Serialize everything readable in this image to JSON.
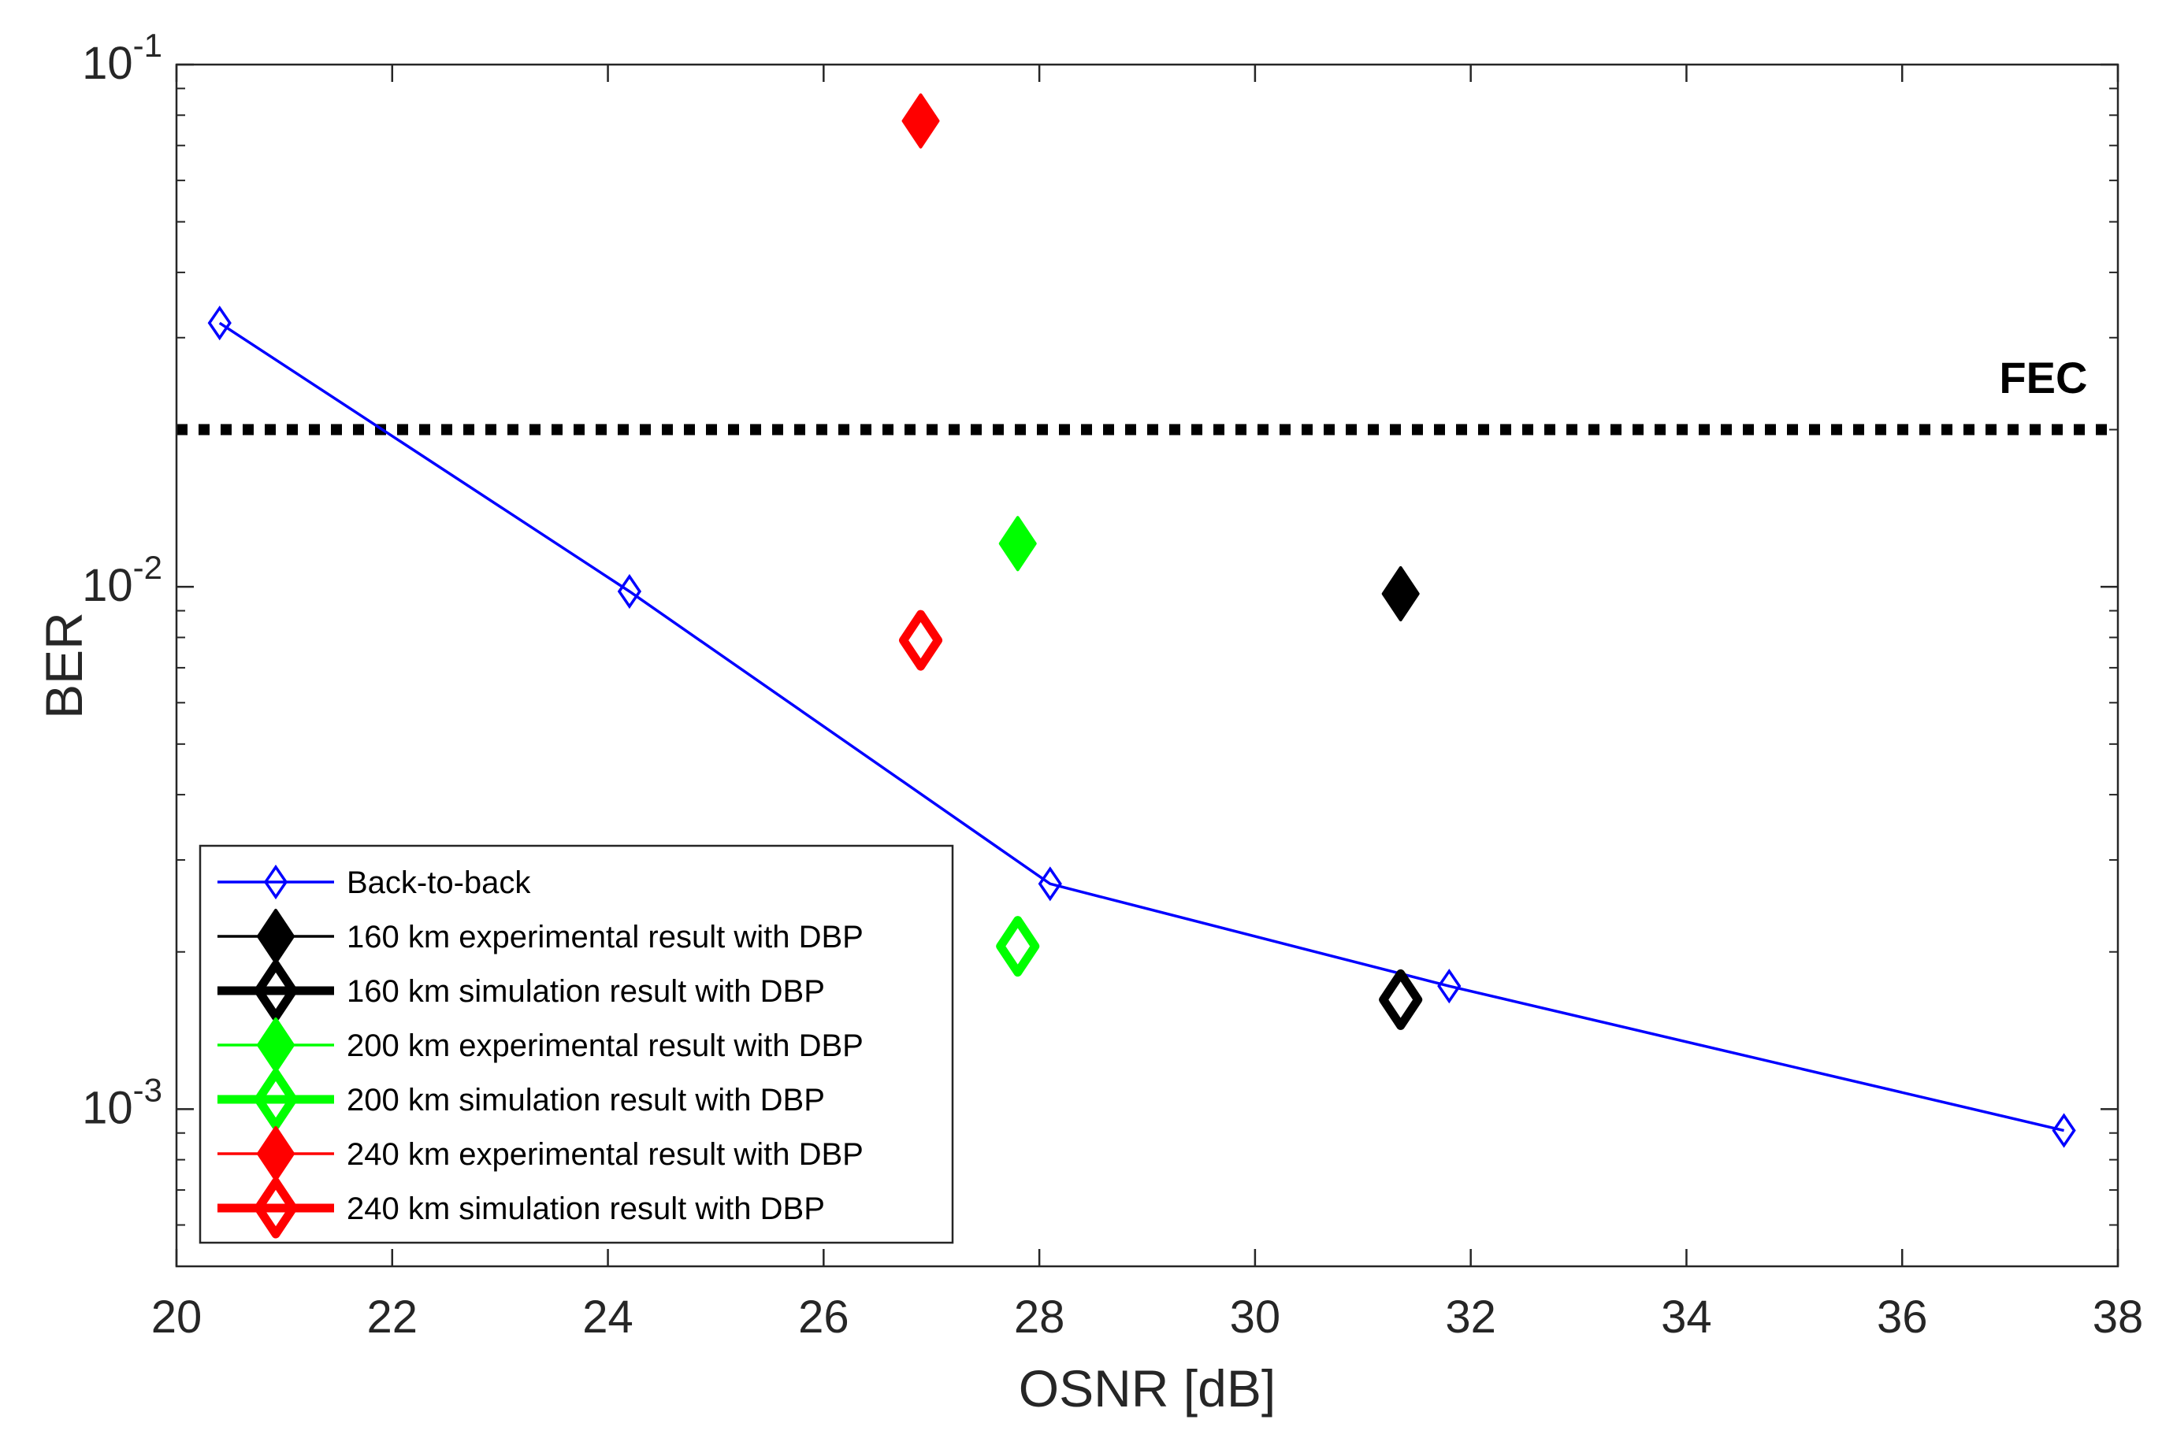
{
  "chart_data": {
    "type": "scatter",
    "title": "",
    "xlabel": "OSNR [dB]",
    "ylabel": "BER",
    "xlim": [
      20,
      38
    ],
    "ylim": [
      0.0005,
      0.1
    ],
    "yscale": "log",
    "x_ticks": [
      20,
      22,
      24,
      26,
      28,
      30,
      32,
      34,
      36,
      38
    ],
    "x_tick_labels": [
      "20",
      "22",
      "24",
      "26",
      "28",
      "30",
      "32",
      "34",
      "36",
      "38"
    ],
    "y_ticks": [
      0.001,
      0.01,
      0.1
    ],
    "y_tick_labels": [
      {
        "base": "10",
        "exp": "-3"
      },
      {
        "base": "10",
        "exp": "-2"
      },
      {
        "base": "10",
        "exp": "-1"
      }
    ],
    "grid": false,
    "legend_position": "bottom-left",
    "annotations": [
      {
        "text": "FEC",
        "x": 36.9,
        "y": 0.0235
      }
    ],
    "threshold_line": {
      "name": "FEC",
      "y": 0.02,
      "style": "dotted",
      "color": "#000000"
    },
    "series": [
      {
        "name": "Back-to-back",
        "color": "#0000ff",
        "marker": "diamond-open",
        "line": true,
        "legend_style": "thin",
        "x": [
          20.4,
          24.2,
          28.1,
          31.8,
          37.5
        ],
        "y": [
          0.032,
          0.0098,
          0.0027,
          0.00172,
          0.00091
        ]
      },
      {
        "name": "160 km experimental result with DBP",
        "color": "#000000",
        "marker": "diamond-filled",
        "line": false,
        "legend_style": "thin",
        "x": [
          31.35
        ],
        "y": [
          0.0097
        ]
      },
      {
        "name": "160 km simulation result with DBP",
        "color": "#000000",
        "marker": "diamond-open-bold",
        "line": false,
        "legend_style": "thick",
        "x": [
          31.35
        ],
        "y": [
          0.00162
        ]
      },
      {
        "name": "200 km experimental result with DBP",
        "color": "#00ff00",
        "marker": "diamond-filled",
        "line": false,
        "legend_style": "thin",
        "x": [
          27.8
        ],
        "y": [
          0.0121
        ]
      },
      {
        "name": "200 km simulation result with DBP",
        "color": "#00ff00",
        "marker": "diamond-open-bold",
        "line": false,
        "legend_style": "thick",
        "x": [
          27.8
        ],
        "y": [
          0.00205
        ]
      },
      {
        "name": "240 km experimental result with DBP",
        "color": "#ff0000",
        "marker": "diamond-filled",
        "line": false,
        "legend_style": "thin",
        "x": [
          26.9
        ],
        "y": [
          0.078
        ]
      },
      {
        "name": "240 km simulation result with DBP",
        "color": "#ff0000",
        "marker": "diamond-open-bold",
        "line": false,
        "legend_style": "thick",
        "x": [
          26.9
        ],
        "y": [
          0.0079
        ]
      }
    ]
  }
}
